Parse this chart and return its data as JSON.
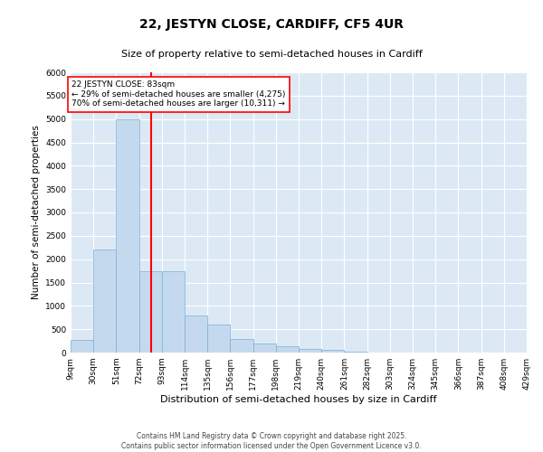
{
  "title": "22, JESTYN CLOSE, CARDIFF, CF5 4UR",
  "subtitle": "Size of property relative to semi-detached houses in Cardiff",
  "xlabel": "Distribution of semi-detached houses by size in Cardiff",
  "ylabel": "Number of semi-detached properties",
  "bar_color": "#c5d9ee",
  "bar_edge_color": "#7bafd4",
  "background_color": "#dce9f5",
  "grid_color": "#ffffff",
  "red_line_x": 83,
  "annotation_text": "22 JESTYN CLOSE: 83sqm\n← 29% of semi-detached houses are smaller (4,275)\n70% of semi-detached houses are larger (10,311) →",
  "footer_line1": "Contains HM Land Registry data © Crown copyright and database right 2025.",
  "footer_line2": "Contains public sector information licensed under the Open Government Licence v3.0.",
  "ylim": [
    0,
    6000
  ],
  "yticks": [
    0,
    500,
    1000,
    1500,
    2000,
    2500,
    3000,
    3500,
    4000,
    4500,
    5000,
    5500,
    6000
  ],
  "bin_edges": [
    9,
    30,
    51,
    72,
    93,
    114,
    135,
    156,
    177,
    198,
    219,
    240,
    261,
    282,
    303,
    324,
    345,
    366,
    387,
    408,
    429
  ],
  "bin_labels": [
    "9sqm",
    "30sqm",
    "51sqm",
    "72sqm",
    "93sqm",
    "114sqm",
    "135sqm",
    "156sqm",
    "177sqm",
    "198sqm",
    "219sqm",
    "240sqm",
    "261sqm",
    "282sqm",
    "303sqm",
    "324sqm",
    "345sqm",
    "366sqm",
    "387sqm",
    "408sqm",
    "429sqm"
  ],
  "bar_heights": [
    280,
    2200,
    5000,
    1750,
    1750,
    800,
    600,
    300,
    200,
    130,
    80,
    50,
    20,
    0,
    0,
    0,
    0,
    0,
    0,
    0
  ],
  "title_fontsize": 10,
  "subtitle_fontsize": 8,
  "xlabel_fontsize": 8,
  "ylabel_fontsize": 7.5,
  "tick_fontsize": 6.5,
  "footer_fontsize": 5.5
}
